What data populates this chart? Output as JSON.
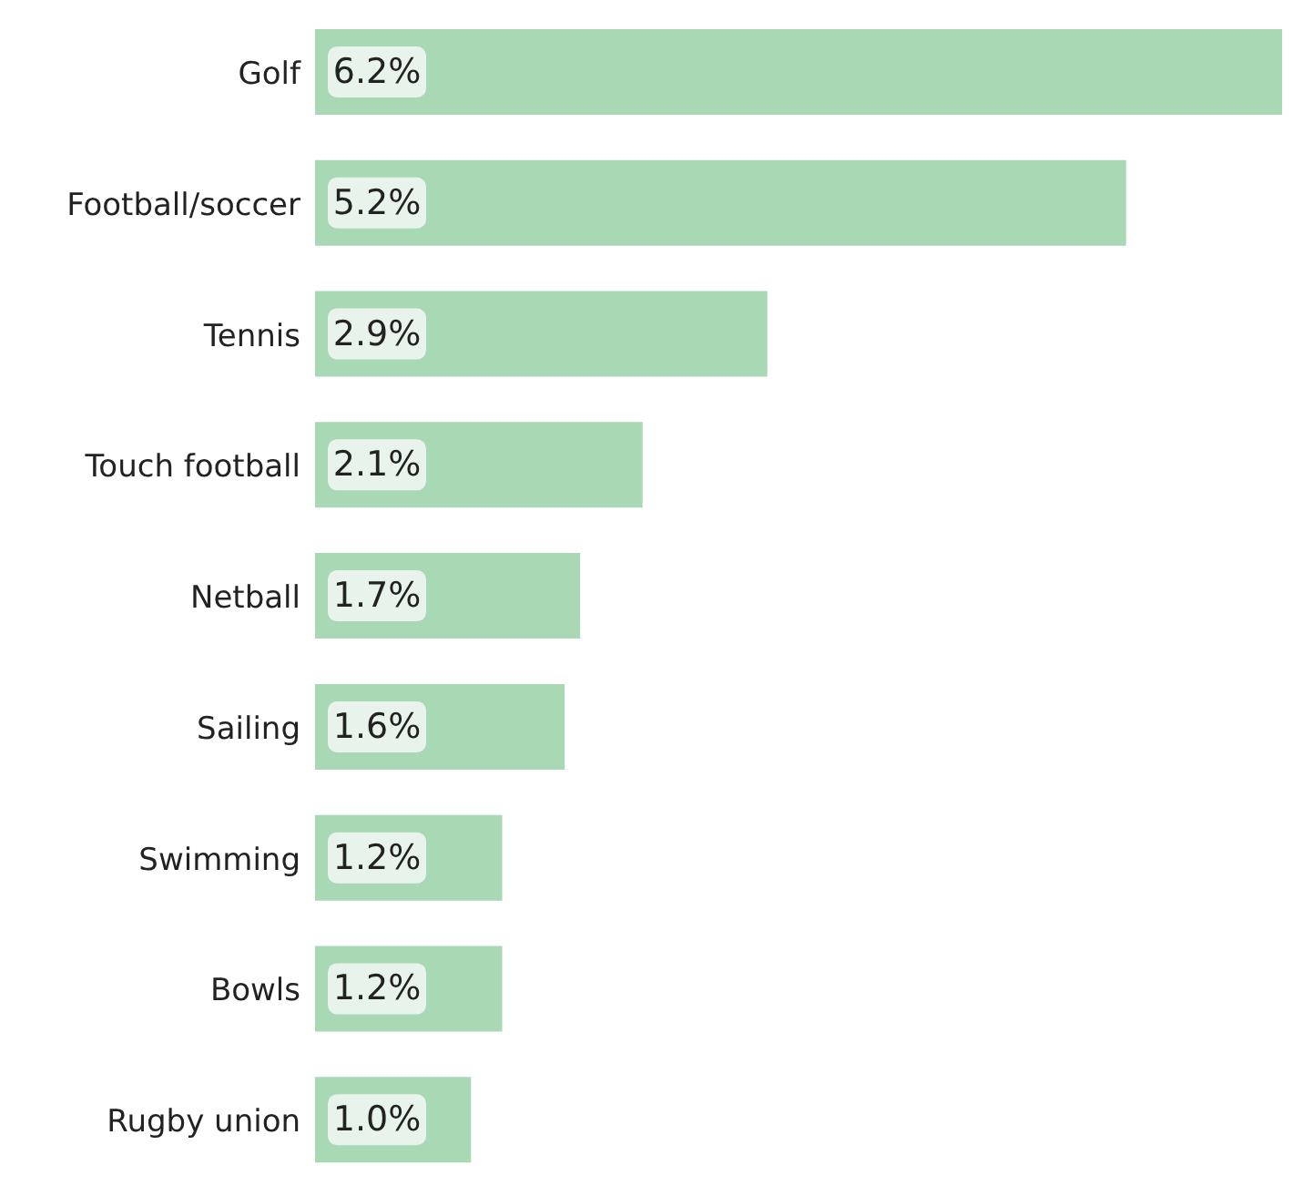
{
  "chart_data": {
    "type": "bar",
    "orientation": "horizontal",
    "categories": [
      "Golf",
      "Football/soccer",
      "Tennis",
      "Touch football",
      "Netball",
      "Sailing",
      "Swimming",
      "Bowls",
      "Rugby union"
    ],
    "values": [
      6.2,
      5.2,
      2.9,
      2.1,
      1.7,
      1.6,
      1.2,
      1.2,
      1.0
    ],
    "value_labels": [
      "6.2%",
      "5.2%",
      "2.9%",
      "2.1%",
      "1.7%",
      "1.6%",
      "1.2%",
      "1.2%",
      "1.0%"
    ],
    "color": "#a9d8b5"
  }
}
